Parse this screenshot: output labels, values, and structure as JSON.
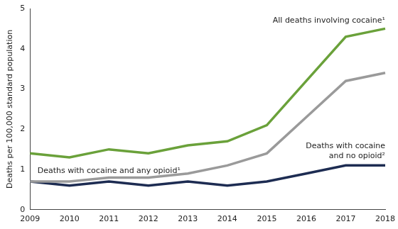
{
  "chart_data": {
    "type": "line",
    "categories": [
      "2009",
      "2010",
      "2011",
      "2012",
      "2013",
      "2014",
      "2015",
      "2016",
      "2017",
      "2018"
    ],
    "y_label": "Deaths per 100,000 standard population",
    "ylim": [
      0,
      5
    ],
    "yticks": [
      0,
      1,
      2,
      3,
      4,
      5
    ],
    "grid": false,
    "series": [
      {
        "name": "All deaths involving cocaine¹",
        "color": "#6aa13a",
        "values": [
          1.4,
          1.3,
          1.5,
          1.4,
          1.6,
          1.7,
          2.1,
          3.2,
          4.3,
          4.5
        ]
      },
      {
        "name": "Deaths with cocaine and any opioid¹",
        "color": "#9a9a9a",
        "values": [
          0.7,
          0.7,
          0.8,
          0.8,
          0.9,
          1.1,
          1.4,
          2.3,
          3.2,
          3.4
        ]
      },
      {
        "name": "Deaths with cocaine and no opioid²",
        "color": "#1d2c52",
        "values": [
          0.7,
          0.6,
          0.7,
          0.6,
          0.7,
          0.6,
          0.7,
          0.9,
          1.1,
          1.1
        ]
      }
    ]
  }
}
